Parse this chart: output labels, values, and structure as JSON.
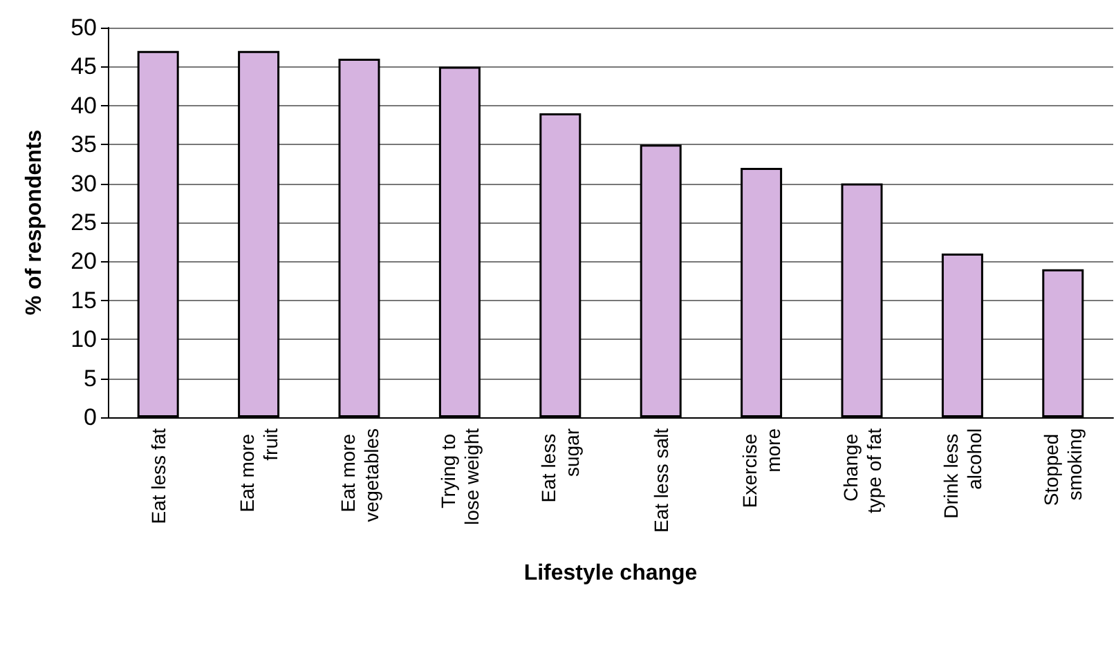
{
  "chart_data": {
    "type": "bar",
    "xlabel": "Lifestyle change",
    "ylabel": "% of respondents",
    "categories": [
      "Eat less fat",
      "Eat more fruit",
      "Eat more vegetables",
      "Trying to lose weight",
      "Eat less sugar",
      "Eat less salt",
      "Exercise more",
      "Change type of fat",
      "Drink less alcohol",
      "Stopped smoking"
    ],
    "values": [
      47,
      47,
      46,
      45,
      39,
      35,
      32,
      30,
      21,
      19
    ],
    "color": "#d6b3e0",
    "ylim": [
      0,
      50
    ],
    "yticks": [
      0,
      5,
      10,
      15,
      20,
      25,
      30,
      35,
      40,
      45,
      50
    ],
    "grid": true
  }
}
